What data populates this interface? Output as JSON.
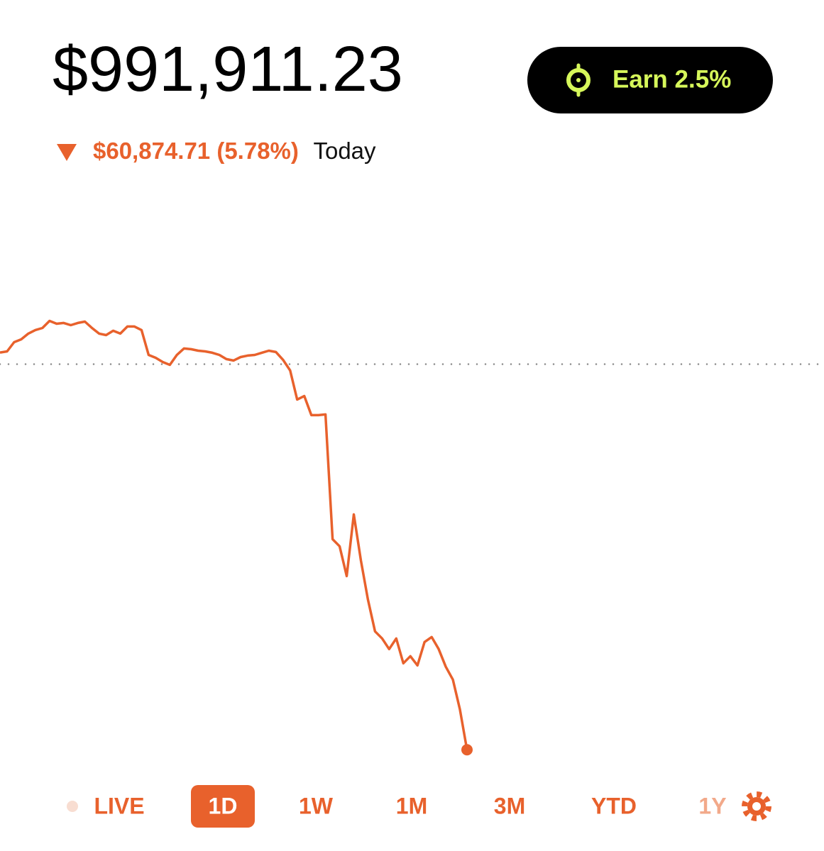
{
  "header": {
    "balance": "$991,911.23",
    "change": "$60,874.71 (5.78%)",
    "change_period": "Today"
  },
  "earn_button": "Earn 2.5%",
  "chart_data": {
    "type": "line",
    "color": "#e8612c",
    "ylim": [
      985000,
      1075000
    ],
    "reference_line": 1052785.94,
    "values": [
      1054600,
      1054800,
      1056250,
      1056700,
      1057600,
      1058160,
      1058490,
      1059610,
      1059160,
      1059280,
      1058940,
      1059280,
      1059500,
      1058490,
      1057600,
      1057370,
      1058050,
      1057600,
      1058720,
      1058720,
      1058160,
      1054240,
      1053790,
      1053120,
      1052670,
      1054240,
      1055250,
      1055140,
      1054910,
      1054800,
      1054580,
      1054240,
      1053570,
      1053350,
      1053900,
      1054130,
      1054240,
      1054580,
      1054910,
      1054690,
      1053460,
      1051780,
      1047190,
      1047750,
      1044730,
      1044730,
      1044840,
      1025150,
      1024030,
      1019330,
      1029060,
      1021790,
      1015630,
      1010600,
      1009480,
      1007800,
      1009480,
      1005560,
      1006680,
      1005230,
      1008920,
      1009700,
      1007800,
      1005010,
      1002990,
      998290,
      991911.23
    ]
  },
  "tabs": [
    "LIVE",
    "1D",
    "1W",
    "1M",
    "3M",
    "YTD",
    "1Y"
  ],
  "active_tab": "1D"
}
